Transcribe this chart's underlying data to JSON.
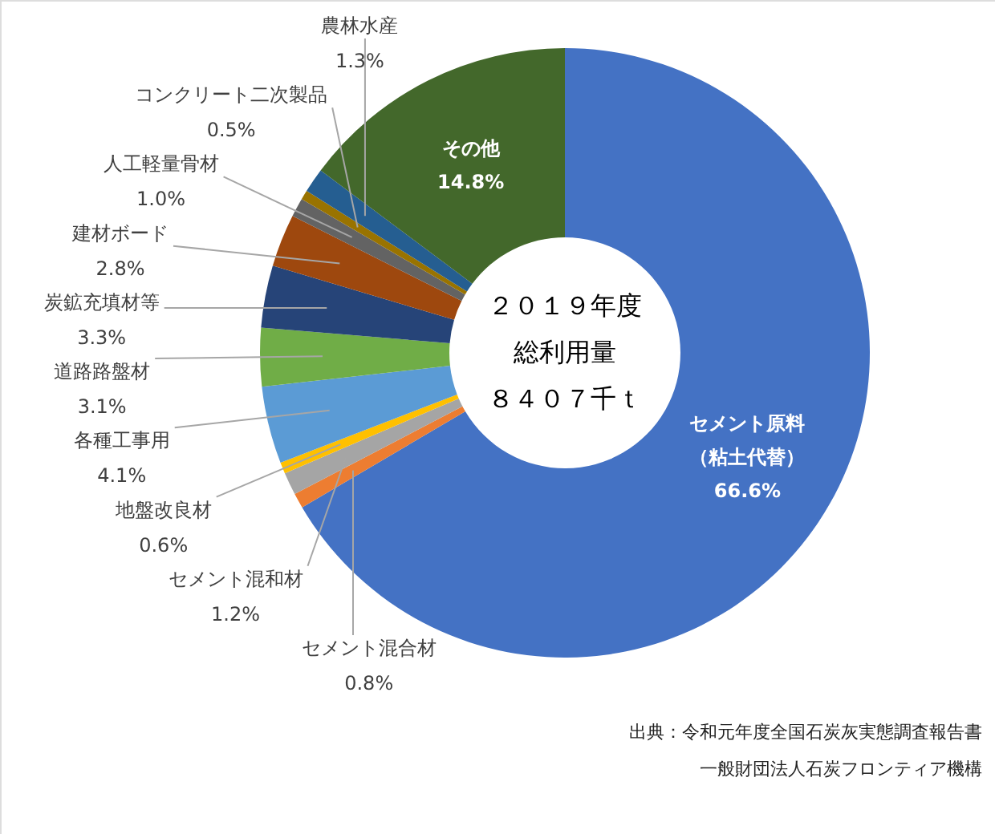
{
  "chart_data": {
    "type": "donut",
    "title": "２０１９年度総利用量",
    "subtitle": "８４０７千ｔ",
    "categories": [
      "セメント原料（粘土代替）",
      "セメント混合材",
      "セメント混和材",
      "地盤改良材",
      "各種工事用",
      "道路路盤材",
      "炭鉱充填材等",
      "建材ボード",
      "人工軽量骨材",
      "コンクリート二次製品",
      "農林水産",
      "その他"
    ],
    "values": [
      66.6,
      0.8,
      1.2,
      0.6,
      4.1,
      3.1,
      3.3,
      2.8,
      1.0,
      0.5,
      1.3,
      14.8
    ],
    "value_labels": [
      "66.6%",
      "0.8%",
      "1.2%",
      "0.6%",
      "4.1%",
      "3.1%",
      "3.3%",
      "2.8%",
      "1.0%",
      "0.5%",
      "1.3%",
      "14.8%"
    ],
    "colors": [
      "#4472c4",
      "#ed7d31",
      "#a5a5a5",
      "#ffc000",
      "#5b9bd5",
      "#70ad47",
      "#264478",
      "#9e480e",
      "#636363",
      "#997300",
      "#255e91",
      "#43682b"
    ],
    "annotations": [
      "出典：令和元年度全国石炭灰実態調査報告書",
      "一般財団法人石炭フロンティア機構"
    ]
  }
}
